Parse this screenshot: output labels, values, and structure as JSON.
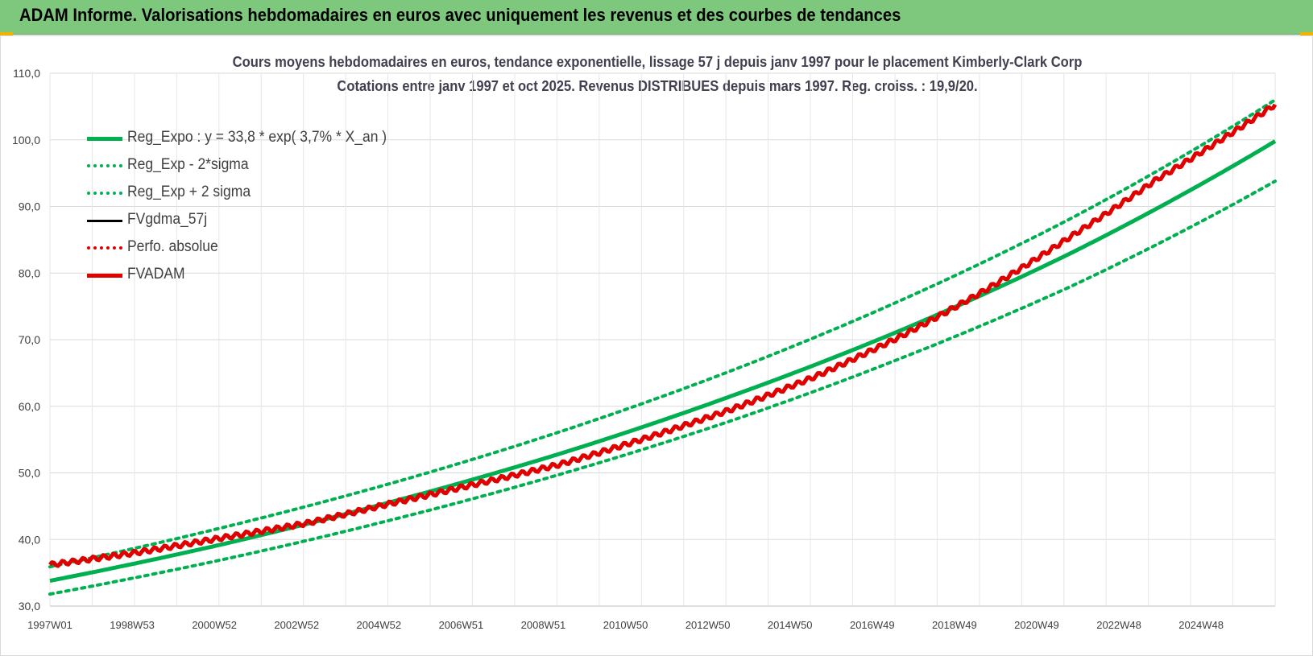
{
  "header": {
    "title": "ADAM Informe. Valorisations hebdomadaires en euros avec uniquement les revenus et des courbes de tendances"
  },
  "chart_data": {
    "type": "line",
    "title_line1": "Cours moyens hebdomadaires en euros, tendance exponentielle, lissage 57 j depuis janv 1997 pour le placement Kimberly-Clark Corp",
    "title_line2": "Cotations entre janv 1997 et oct 2025. Revenus DISTRIBUES depuis mars 1997. Reg. croiss. : 19,9/20.",
    "ylim": [
      30,
      110
    ],
    "y_ticks": [
      "110,0",
      "100,0",
      "90,0",
      "80,0",
      "70,0",
      "60,0",
      "50,0",
      "40,0",
      "30,0"
    ],
    "x_ticks": [
      "1997W01",
      "1998W53",
      "2000W52",
      "2002W52",
      "2004W52",
      "2006W51",
      "2008W51",
      "2010W50",
      "2012W50",
      "2014W50",
      "2016W49",
      "2018W49",
      "2020W49",
      "2022W48",
      "2024W48"
    ],
    "x_range_years": [
      1997.0,
      2025.8
    ],
    "grid": true,
    "legend_position": "top-left",
    "series": [
      {
        "name": "Reg_Expo : y = 33,8 * exp( 3,7% *  X_an )",
        "color": "#00b050",
        "style": "solid-thick",
        "x": [
          1997.0,
          2001.0,
          2005.0,
          2009.0,
          2013.0,
          2017.0,
          2021.0,
          2025.8
        ],
        "values": [
          33.8,
          39.2,
          45.6,
          52.9,
          61.5,
          71.4,
          83.0,
          99.8
        ]
      },
      {
        "name": "Reg_Exp - 2*sigma",
        "color": "#00b050",
        "style": "dotted",
        "x": [
          1997.0,
          2001.0,
          2005.0,
          2009.0,
          2013.0,
          2017.0,
          2021.0,
          2025.8
        ],
        "values": [
          31.8,
          36.9,
          42.9,
          49.8,
          57.8,
          67.2,
          78.0,
          93.8
        ]
      },
      {
        "name": "Reg_Exp + 2 sigma",
        "color": "#00b050",
        "style": "dotted",
        "x": [
          1997.0,
          2001.0,
          2005.0,
          2009.0,
          2013.0,
          2017.0,
          2021.0,
          2025.8
        ],
        "values": [
          35.9,
          41.7,
          48.4,
          56.2,
          65.3,
          75.9,
          88.2,
          106.0
        ]
      },
      {
        "name": "FVgdma_57j",
        "color": "#000000",
        "style": "solid",
        "x": [],
        "values": []
      },
      {
        "name": "Perfo. absolue",
        "color": "#e00000",
        "style": "dotted",
        "x": [],
        "values": []
      },
      {
        "name": "FVADAM",
        "color": "#e00000",
        "style": "solid-thick",
        "x": [
          1997.0,
          1999.0,
          2001.0,
          2003.0,
          2005.0,
          2007.0,
          2009.0,
          2011.0,
          2013.0,
          2015.0,
          2017.0,
          2019.0,
          2021.0,
          2023.0,
          2025.8
        ],
        "values": [
          36.2,
          38.0,
          40.2,
          42.4,
          45.4,
          48.3,
          51.3,
          55.2,
          59.5,
          64.5,
          70.5,
          77.5,
          85.5,
          94.0,
          105.3
        ]
      }
    ]
  }
}
